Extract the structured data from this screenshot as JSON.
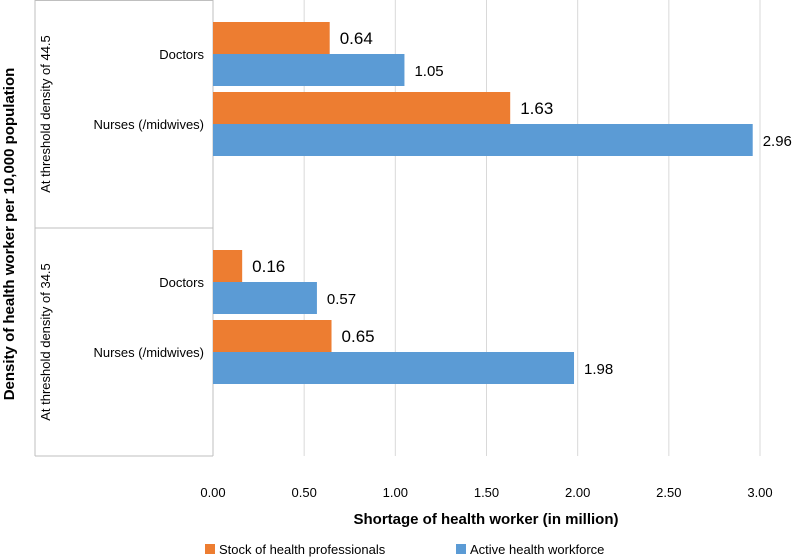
{
  "chart_data": {
    "type": "bar",
    "orientation": "horizontal",
    "title": "",
    "xlabel": "Shortage of health worker (in million)",
    "ylabel": "Density of health worker per 10,000 population",
    "xlim": [
      0,
      3
    ],
    "xticks": [
      "0.00",
      "0.50",
      "1.00",
      "1.50",
      "2.00",
      "2.50",
      "3.00"
    ],
    "grid": true,
    "legend_position": "bottom",
    "groups": [
      {
        "label": "At threshold density of 44.5",
        "categories": [
          "Doctors",
          "Nurses (/midwives)"
        ]
      },
      {
        "label": "At threshold density of 34.5",
        "categories": [
          "Doctors",
          "Nurses (/midwives)"
        ]
      }
    ],
    "series": [
      {
        "name": "Stock of health professionals",
        "color": "#ED7D31",
        "values": [
          [
            0.64,
            1.63
          ],
          [
            0.16,
            0.65
          ]
        ],
        "labels": [
          [
            "0.64",
            "1.63"
          ],
          [
            "0.16",
            "0.65"
          ]
        ]
      },
      {
        "name": "Active health workforce",
        "color": "#5B9BD5",
        "values": [
          [
            1.05,
            2.96
          ],
          [
            0.57,
            1.98
          ]
        ],
        "labels": [
          [
            "1.05",
            "2.96"
          ],
          [
            "0.57",
            "1.98"
          ]
        ]
      }
    ]
  }
}
